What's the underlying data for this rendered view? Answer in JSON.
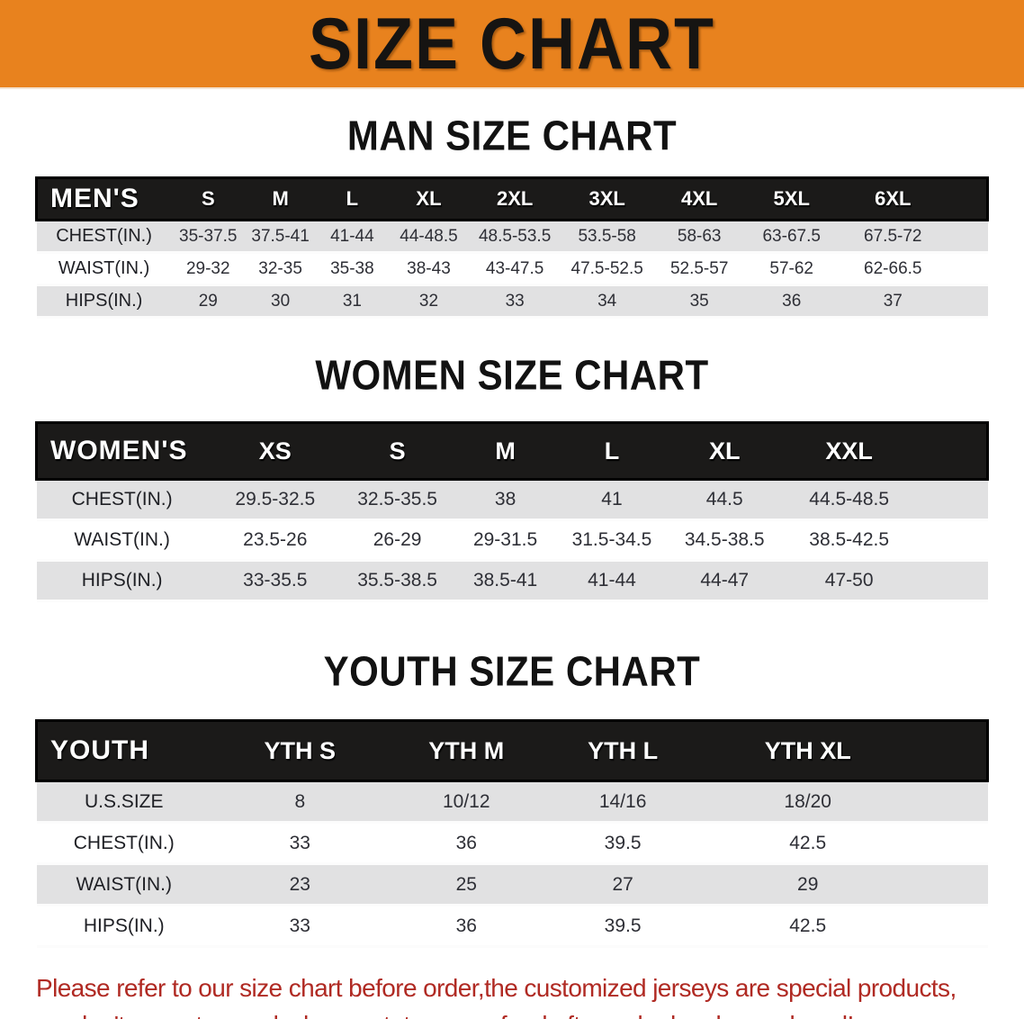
{
  "banner": {
    "title": "SIZE CHART",
    "bg_color": "#E8821E",
    "text_color": "#161412"
  },
  "sections": [
    {
      "heading": "MAN SIZE CHART",
      "table": {
        "corner": "MEN'S",
        "columns": [
          "S",
          "M",
          "L",
          "XL",
          "2XL",
          "3XL",
          "4XL",
          "5XL",
          "6XL"
        ],
        "rows": [
          {
            "label": "CHEST(IN.)",
            "values": [
              "35-37.5",
              "37.5-41",
              "41-44",
              "44-48.5",
              "48.5-53.5",
              "53.5-58",
              "58-63",
              "63-67.5",
              "67.5-72"
            ]
          },
          {
            "label": "WAIST(IN.)",
            "values": [
              "29-32",
              "32-35",
              "35-38",
              "38-43",
              "43-47.5",
              "47.5-52.5",
              "52.5-57",
              "57-62",
              "62-66.5"
            ]
          },
          {
            "label": "HIPS(IN.)",
            "values": [
              "29",
              "30",
              "31",
              "32",
              "33",
              "34",
              "35",
              "36",
              "37"
            ]
          }
        ]
      }
    },
    {
      "heading": "WOMEN SIZE CHART",
      "table": {
        "corner": "WOMEN'S",
        "columns": [
          "XS",
          "S",
          "M",
          "L",
          "XL",
          "XXL"
        ],
        "rows": [
          {
            "label": "CHEST(IN.)",
            "values": [
              "29.5-32.5",
              "32.5-35.5",
              "38",
              "41",
              "44.5",
              "44.5-48.5"
            ]
          },
          {
            "label": "WAIST(IN.)",
            "values": [
              "23.5-26",
              "26-29",
              "29-31.5",
              "31.5-34.5",
              "34.5-38.5",
              "38.5-42.5"
            ]
          },
          {
            "label": "HIPS(IN.)",
            "values": [
              "33-35.5",
              "35.5-38.5",
              "38.5-41",
              "41-44",
              "44-47",
              "47-50"
            ]
          }
        ]
      }
    },
    {
      "heading": "YOUTH SIZE CHART",
      "table": {
        "corner": "YOUTH",
        "columns": [
          "YTH S",
          "YTH M",
          "YTH L",
          "YTH XL"
        ],
        "rows": [
          {
            "label": "U.S.SIZE",
            "values": [
              "8",
              "10/12",
              "14/16",
              "18/20"
            ]
          },
          {
            "label": "CHEST(IN.)",
            "values": [
              "33",
              "36",
              "39.5",
              "42.5"
            ]
          },
          {
            "label": "WAIST(IN.)",
            "values": [
              "23",
              "25",
              "27",
              "29"
            ]
          },
          {
            "label": "HIPS(IN.)",
            "values": [
              "33",
              "36",
              "39.5",
              "42.5"
            ]
          }
        ]
      }
    }
  ],
  "footer": {
    "line1": "Please refer to our size chart before order,the customized jerseys are special products,",
    "line2": "we don't accept cancel, change, teturn or refund after order has been placed!",
    "text_color": "#b02a23"
  },
  "colors": {
    "banner_orange": "#E8821E",
    "header_black": "#1b1a19",
    "stripe_gray": "#e1e1e2",
    "notice_red": "#b02a23"
  }
}
